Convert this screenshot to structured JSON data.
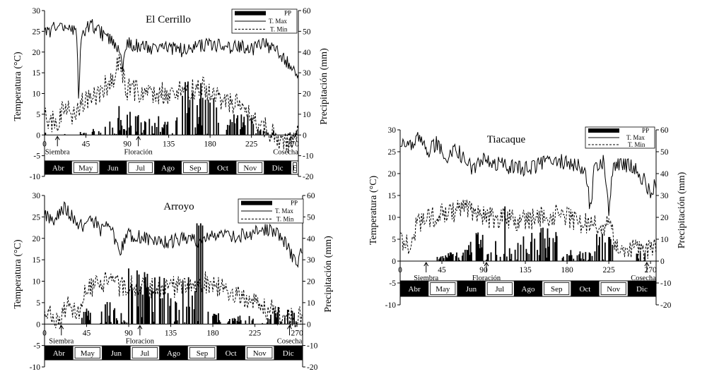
{
  "chart_data": [
    {
      "type": "bar+line",
      "title": "El Cerrillo",
      "xlabel": "",
      "ylabel_left": "Temperatura (°C)",
      "ylabel_right": "Precipitación (mm)",
      "xlim": [
        0,
        276
      ],
      "ylim_left": [
        -10,
        30
      ],
      "ylim_right": [
        -20,
        60
      ],
      "xticks": [
        "0",
        "45",
        "90",
        "135",
        "180",
        "225",
        "270"
      ],
      "xtick_values": [
        0,
        45,
        90,
        135,
        180,
        225,
        270
      ],
      "yticks_left": [
        "-10",
        "-5",
        "0",
        "5",
        "10",
        "15",
        "20",
        "25",
        "30"
      ],
      "yticks_right": [
        "-20",
        "-10",
        "0",
        "10",
        "20",
        "30",
        "40",
        "50",
        "60"
      ],
      "legend": [
        "PP",
        "T. Max",
        "T. Min"
      ],
      "months": [
        {
          "label": "Abr",
          "dark": true
        },
        {
          "label": "May",
          "dark": false
        },
        {
          "label": "Jun",
          "dark": true
        },
        {
          "label": "Jul",
          "dark": false
        },
        {
          "label": "Ago",
          "dark": true
        },
        {
          "label": "Sep",
          "dark": false
        },
        {
          "label": "Oct",
          "dark": true
        },
        {
          "label": "Nov",
          "dark": false
        },
        {
          "label": "Dic",
          "dark": true
        },
        {
          "label": "E",
          "dark": false
        }
      ],
      "annotations": [
        {
          "label": "Siembra",
          "day": 14
        },
        {
          "label": "Floración",
          "day": 102
        },
        {
          "label": "Cosecha",
          "day": 268
        }
      ],
      "tmax_anchor": [
        [
          0,
          26
        ],
        [
          8,
          25
        ],
        [
          15,
          27.5
        ],
        [
          25,
          25
        ],
        [
          30,
          26
        ],
        [
          35,
          24
        ],
        [
          37,
          10
        ],
        [
          40,
          24
        ],
        [
          50,
          27
        ],
        [
          60,
          25
        ],
        [
          70,
          23
        ],
        [
          80,
          21
        ],
        [
          85,
          17
        ],
        [
          90,
          22
        ],
        [
          110,
          21
        ],
        [
          130,
          21
        ],
        [
          150,
          20.5
        ],
        [
          180,
          22
        ],
        [
          200,
          21
        ],
        [
          210,
          22
        ],
        [
          220,
          20
        ],
        [
          240,
          22
        ],
        [
          255,
          20
        ],
        [
          265,
          17
        ],
        [
          270,
          16
        ],
        [
          276,
          13
        ]
      ],
      "tmin_anchor": [
        [
          0,
          5
        ],
        [
          15,
          2
        ],
        [
          22,
          8
        ],
        [
          30,
          3
        ],
        [
          40,
          8
        ],
        [
          60,
          10
        ],
        [
          75,
          14
        ],
        [
          80,
          18
        ],
        [
          90,
          11
        ],
        [
          120,
          10
        ],
        [
          150,
          10.5
        ],
        [
          170,
          11.5
        ],
        [
          190,
          9
        ],
        [
          210,
          7
        ],
        [
          230,
          3
        ],
        [
          245,
          1
        ],
        [
          255,
          -1
        ],
        [
          265,
          -2
        ],
        [
          276,
          1
        ]
      ],
      "tmax_amp": 1.8,
      "tmin_amp": 2.8,
      "pp_windows": [
        [
          1,
          2,
          4
        ],
        [
          22,
          24,
          6
        ],
        [
          38,
          48,
          2
        ],
        [
          50,
          62,
          5
        ],
        [
          65,
          100,
          14
        ],
        [
          100,
          145,
          10
        ],
        [
          150,
          190,
          26
        ],
        [
          190,
          230,
          10
        ],
        [
          230,
          250,
          3
        ],
        [
          265,
          276,
          3
        ]
      ],
      "pp_spikes": [
        [
          170,
          25
        ]
      ],
      "seed": 11
    },
    {
      "type": "bar+line",
      "title": "Arroyo",
      "xlabel": "",
      "ylabel_left": "Temperatura (°C)",
      "ylabel_right": "Precipitación (mm)",
      "xlim": [
        0,
        276
      ],
      "ylim_left": [
        -10,
        30
      ],
      "ylim_right": [
        -20,
        60
      ],
      "xticks": [
        "0",
        "45",
        "90",
        "135",
        "180",
        "225",
        "270"
      ],
      "xtick_values": [
        0,
        45,
        90,
        135,
        180,
        225,
        270
      ],
      "yticks_left": [
        "-10",
        "-5",
        "0",
        "5",
        "10",
        "15",
        "20",
        "25",
        "30"
      ],
      "yticks_right": [
        "-20",
        "-10",
        "0",
        "10",
        "20",
        "30",
        "40",
        "50",
        "60"
      ],
      "legend": [
        "PP",
        "T. Max",
        "T. Min"
      ],
      "months": [
        {
          "label": "Abr",
          "dark": true
        },
        {
          "label": "May",
          "dark": false
        },
        {
          "label": "Jun",
          "dark": true
        },
        {
          "label": "Jul",
          "dark": false
        },
        {
          "label": "Ago",
          "dark": true
        },
        {
          "label": "Sep",
          "dark": false
        },
        {
          "label": "Oct",
          "dark": true
        },
        {
          "label": "Nov",
          "dark": false
        },
        {
          "label": "Dic",
          "dark": true
        }
      ],
      "annotations": [
        {
          "label": "Siembra",
          "day": 18
        },
        {
          "label": "Floracion",
          "day": 102
        },
        {
          "label": "Cosecha",
          "day": 262
        }
      ],
      "tmax_anchor": [
        [
          0,
          26
        ],
        [
          10,
          24
        ],
        [
          20,
          27
        ],
        [
          30,
          25
        ],
        [
          40,
          23
        ],
        [
          50,
          25
        ],
        [
          60,
          22
        ],
        [
          70,
          23
        ],
        [
          80,
          17
        ],
        [
          90,
          21
        ],
        [
          110,
          20
        ],
        [
          130,
          19
        ],
        [
          150,
          20
        ],
        [
          170,
          19
        ],
        [
          180,
          21
        ],
        [
          200,
          20
        ],
        [
          220,
          21
        ],
        [
          240,
          22
        ],
        [
          255,
          20
        ],
        [
          265,
          16
        ],
        [
          270,
          13
        ],
        [
          276,
          18
        ]
      ],
      "tmin_anchor": [
        [
          0,
          3
        ],
        [
          15,
          1
        ],
        [
          25,
          5
        ],
        [
          35,
          2
        ],
        [
          45,
          8
        ],
        [
          60,
          10
        ],
        [
          80,
          9
        ],
        [
          100,
          9
        ],
        [
          120,
          8
        ],
        [
          150,
          9
        ],
        [
          170,
          10
        ],
        [
          190,
          8
        ],
        [
          210,
          7
        ],
        [
          230,
          4
        ],
        [
          245,
          3
        ],
        [
          260,
          1
        ],
        [
          276,
          2
        ]
      ],
      "tmax_amp": 1.7,
      "tmin_amp": 2.6,
      "pp_windows": [
        [
          40,
          50,
          8
        ],
        [
          60,
          85,
          12
        ],
        [
          85,
          130,
          26
        ],
        [
          130,
          165,
          22
        ],
        [
          175,
          190,
          6
        ],
        [
          195,
          240,
          4
        ],
        [
          240,
          270,
          8
        ]
      ],
      "pp_spikes": [
        [
          163,
          47
        ],
        [
          165,
          46
        ],
        [
          167,
          47
        ],
        [
          169,
          46
        ]
      ],
      "seed": 23
    },
    {
      "type": "bar+line",
      "title": "Tiacaque",
      "xlabel": "",
      "ylabel_left": "Temperatura (°C)",
      "ylabel_right": "Precipitación (mm)",
      "xlim": [
        0,
        276
      ],
      "ylim_left": [
        -10,
        30
      ],
      "ylim_right": [
        -20,
        60
      ],
      "xticks": [
        "0",
        "45",
        "90",
        "135",
        "180",
        "225",
        "270"
      ],
      "xtick_values": [
        0,
        45,
        90,
        135,
        180,
        225,
        270
      ],
      "yticks_left": [
        "-10",
        "-5",
        "0",
        "5",
        "10",
        "15",
        "20",
        "25",
        "30"
      ],
      "yticks_right": [
        "-20",
        "-10",
        "0",
        "10",
        "20",
        "30",
        "40",
        "50",
        "60"
      ],
      "legend": [
        "PP",
        "T. Max",
        "T. Min"
      ],
      "months": [
        {
          "label": "Abr",
          "dark": true
        },
        {
          "label": "May",
          "dark": false
        },
        {
          "label": "Jun",
          "dark": true
        },
        {
          "label": "Jul",
          "dark": false
        },
        {
          "label": "Ago",
          "dark": true
        },
        {
          "label": "Sep",
          "dark": false
        },
        {
          "label": "Oct",
          "dark": true
        },
        {
          "label": "Nov",
          "dark": false
        },
        {
          "label": "Dic",
          "dark": true
        }
      ],
      "annotations": [
        {
          "label": "Siembra",
          "day": 28
        },
        {
          "label": "Floración",
          "day": 93
        },
        {
          "label": "Cosecha",
          "day": 266
        }
      ],
      "tmax_anchor": [
        [
          0,
          27
        ],
        [
          10,
          26
        ],
        [
          20,
          28
        ],
        [
          30,
          25
        ],
        [
          40,
          27
        ],
        [
          50,
          23
        ],
        [
          60,
          26
        ],
        [
          70,
          23
        ],
        [
          80,
          21
        ],
        [
          90,
          23
        ],
        [
          110,
          22
        ],
        [
          130,
          21
        ],
        [
          150,
          22
        ],
        [
          170,
          23
        ],
        [
          190,
          22
        ],
        [
          200,
          20
        ],
        [
          205,
          12
        ],
        [
          210,
          22
        ],
        [
          220,
          23
        ],
        [
          225,
          12
        ],
        [
          230,
          22
        ],
        [
          250,
          22
        ],
        [
          265,
          18
        ],
        [
          270,
          15
        ],
        [
          276,
          18
        ]
      ],
      "tmin_anchor": [
        [
          0,
          5
        ],
        [
          10,
          4
        ],
        [
          20,
          9
        ],
        [
          35,
          10
        ],
        [
          50,
          11
        ],
        [
          70,
          12
        ],
        [
          90,
          10
        ],
        [
          110,
          10
        ],
        [
          130,
          9
        ],
        [
          150,
          10
        ],
        [
          170,
          11
        ],
        [
          190,
          9
        ],
        [
          210,
          8
        ],
        [
          225,
          8
        ],
        [
          235,
          3
        ],
        [
          250,
          3
        ],
        [
          265,
          2
        ],
        [
          276,
          4
        ]
      ],
      "tmax_amp": 1.8,
      "tmin_amp": 2.6,
      "pp_windows": [
        [
          40,
          50,
          3
        ],
        [
          50,
          70,
          4
        ],
        [
          70,
          90,
          14
        ],
        [
          90,
          115,
          10
        ],
        [
          115,
          140,
          12
        ],
        [
          140,
          170,
          16
        ],
        [
          170,
          190,
          6
        ],
        [
          190,
          210,
          5
        ],
        [
          210,
          230,
          14
        ],
        [
          255,
          265,
          4
        ]
      ],
      "pp_spikes": [
        [
          113,
          25
        ],
        [
          225,
          11
        ],
        [
          226,
          11
        ],
        [
          227,
          10
        ]
      ],
      "seed": 37
    }
  ]
}
